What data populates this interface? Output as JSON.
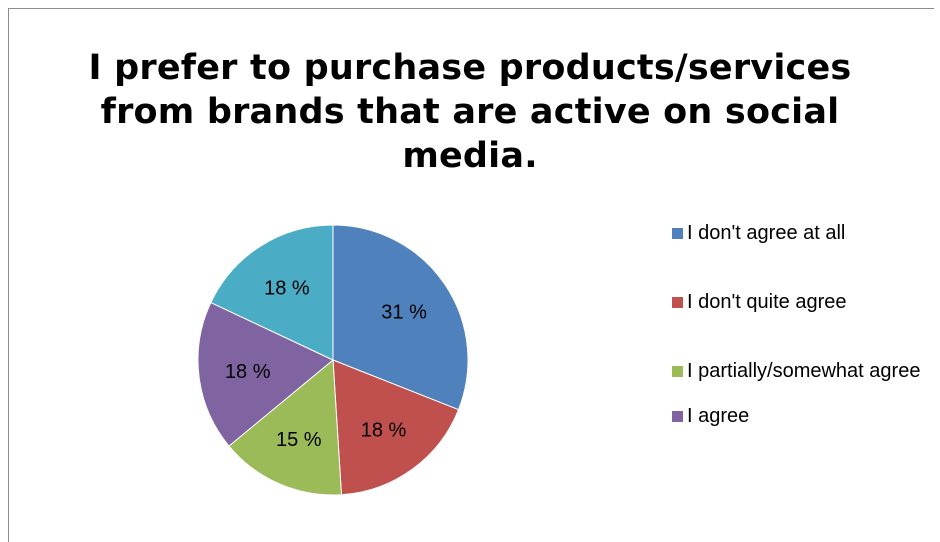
{
  "chart_data": {
    "type": "pie",
    "title": "I prefer to purchase products/services from brands that are active on social media.",
    "slices": [
      {
        "label": "I don't agree at all",
        "value": 31,
        "display": "31 %",
        "color": "#4f81bd"
      },
      {
        "label": "I don't quite agree",
        "value": 18,
        "display": "18 %",
        "color": "#c0504d"
      },
      {
        "label": "I partially/somewhat agree",
        "value": 15,
        "display": "15 %",
        "color": "#9bbb59"
      },
      {
        "label": "I agree",
        "value": 18,
        "display": "18 %",
        "color": "#8064a2"
      },
      {
        "label": "",
        "value": 18,
        "display": "18 %",
        "color": "#4bacc6"
      }
    ],
    "legend_position": "right",
    "legend_items": [
      {
        "label": "I don't agree at all",
        "color": "#4f81bd"
      },
      {
        "label": "I don't quite agree",
        "color": "#c0504d"
      },
      {
        "label": "I partially/somewhat agree",
        "color": "#9bbb59"
      },
      {
        "label": "I agree",
        "color": "#8064a2"
      }
    ]
  }
}
